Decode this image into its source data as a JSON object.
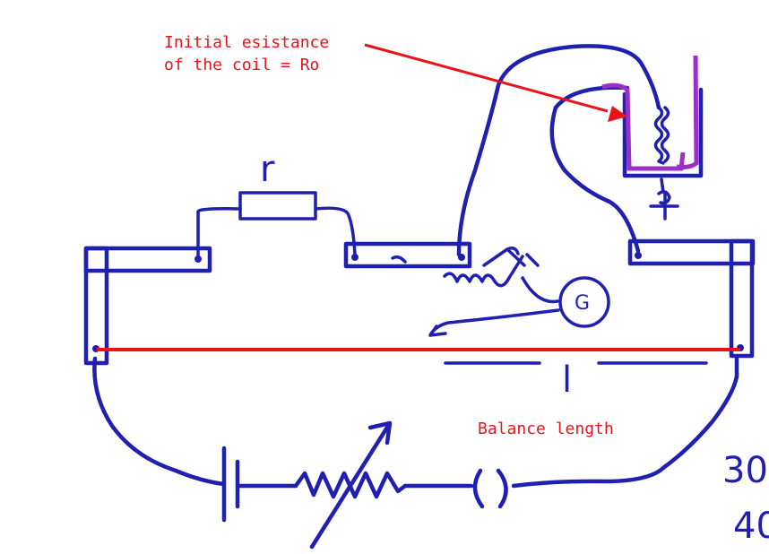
{
  "annotations": {
    "coil_label_line1": "Initial esistance",
    "coil_label_line2": "of the coil = Ro",
    "balance_label": "Balance length"
  },
  "handwriting": {
    "resistor_label": "r",
    "length_label": "l",
    "galvanometer_label": "G",
    "margin_number_1": "30",
    "margin_number_2": "40"
  },
  "colors": {
    "ink": "#1f1fb0",
    "wire": "#e8141b",
    "coil": "#9b30c8"
  }
}
